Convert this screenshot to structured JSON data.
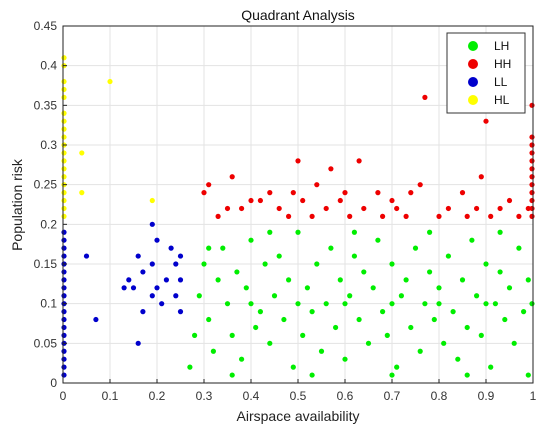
{
  "chart_data": {
    "type": "scatter",
    "title": "Quadrant Analysis",
    "xlabel": "Airspace availability",
    "ylabel": "Population risk",
    "xlim": [
      0,
      1
    ],
    "ylim": [
      0,
      0.45
    ],
    "xticks": [
      0,
      0.1,
      0.2,
      0.3,
      0.4,
      0.5,
      0.6,
      0.7,
      0.8,
      0.9,
      1
    ],
    "yticks": [
      0,
      0.05,
      0.1,
      0.15,
      0.2,
      0.25,
      0.3,
      0.35,
      0.4,
      0.45
    ],
    "xtick_labels": [
      "0",
      "0.1",
      "0.2",
      "0.3",
      "0.4",
      "0.5",
      "0.6",
      "0.7",
      "0.8",
      "0.9",
      "1"
    ],
    "ytick_labels": [
      "0",
      "0.05",
      "0.1",
      "0.15",
      "0.2",
      "0.25",
      "0.3",
      "0.35",
      "0.4",
      "0.45"
    ],
    "grid": true,
    "legend_position": "top-right",
    "series": [
      {
        "name": "LH",
        "color": "#00ee00",
        "points": [
          [
            0.27,
            0.02
          ],
          [
            0.28,
            0.06
          ],
          [
            0.29,
            0.11
          ],
          [
            0.3,
            0.15
          ],
          [
            0.31,
            0.08
          ],
          [
            0.32,
            0.04
          ],
          [
            0.33,
            0.13
          ],
          [
            0.34,
            0.17
          ],
          [
            0.35,
            0.1
          ],
          [
            0.36,
            0.06
          ],
          [
            0.37,
            0.14
          ],
          [
            0.38,
            0.03
          ],
          [
            0.39,
            0.12
          ],
          [
            0.4,
            0.18
          ],
          [
            0.41,
            0.07
          ],
          [
            0.42,
            0.09
          ],
          [
            0.43,
            0.15
          ],
          [
            0.44,
            0.05
          ],
          [
            0.45,
            0.11
          ],
          [
            0.46,
            0.16
          ],
          [
            0.47,
            0.08
          ],
          [
            0.48,
            0.13
          ],
          [
            0.49,
            0.02
          ],
          [
            0.5,
            0.19
          ],
          [
            0.51,
            0.06
          ],
          [
            0.52,
            0.12
          ],
          [
            0.53,
            0.09
          ],
          [
            0.54,
            0.15
          ],
          [
            0.55,
            0.04
          ],
          [
            0.56,
            0.1
          ],
          [
            0.57,
            0.17
          ],
          [
            0.58,
            0.07
          ],
          [
            0.59,
            0.13
          ],
          [
            0.6,
            0.03
          ],
          [
            0.61,
            0.11
          ],
          [
            0.62,
            0.16
          ],
          [
            0.63,
            0.08
          ],
          [
            0.64,
            0.14
          ],
          [
            0.65,
            0.05
          ],
          [
            0.66,
            0.12
          ],
          [
            0.67,
            0.18
          ],
          [
            0.68,
            0.09
          ],
          [
            0.69,
            0.06
          ],
          [
            0.7,
            0.15
          ],
          [
            0.71,
            0.02
          ],
          [
            0.72,
            0.11
          ],
          [
            0.73,
            0.13
          ],
          [
            0.74,
            0.07
          ],
          [
            0.75,
            0.17
          ],
          [
            0.76,
            0.04
          ],
          [
            0.77,
            0.1
          ],
          [
            0.78,
            0.14
          ],
          [
            0.79,
            0.08
          ],
          [
            0.8,
            0.12
          ],
          [
            0.81,
            0.05
          ],
          [
            0.82,
            0.16
          ],
          [
            0.83,
            0.09
          ],
          [
            0.84,
            0.03
          ],
          [
            0.85,
            0.13
          ],
          [
            0.86,
            0.07
          ],
          [
            0.87,
            0.18
          ],
          [
            0.88,
            0.11
          ],
          [
            0.89,
            0.06
          ],
          [
            0.9,
            0.15
          ],
          [
            0.91,
            0.02
          ],
          [
            0.92,
            0.1
          ],
          [
            0.93,
            0.14
          ],
          [
            0.94,
            0.08
          ],
          [
            0.95,
            0.12
          ],
          [
            0.96,
            0.05
          ],
          [
            0.97,
            0.17
          ],
          [
            0.98,
            0.09
          ],
          [
            0.99,
            0.13
          ],
          [
            1.0,
            0.1
          ],
          [
            0.31,
            0.17
          ],
          [
            0.36,
            0.01
          ],
          [
            0.44,
            0.19
          ],
          [
            0.53,
            0.01
          ],
          [
            0.62,
            0.19
          ],
          [
            0.7,
            0.01
          ],
          [
            0.78,
            0.19
          ],
          [
            0.86,
            0.01
          ],
          [
            0.93,
            0.19
          ],
          [
            0.99,
            0.01
          ],
          [
            0.4,
            0.1
          ],
          [
            0.5,
            0.1
          ],
          [
            0.6,
            0.1
          ],
          [
            0.7,
            0.1
          ],
          [
            0.8,
            0.1
          ],
          [
            0.9,
            0.1
          ]
        ]
      },
      {
        "name": "HH",
        "color": "#ee0000",
        "points": [
          [
            0.3,
            0.24
          ],
          [
            0.31,
            0.25
          ],
          [
            0.33,
            0.21
          ],
          [
            0.35,
            0.22
          ],
          [
            0.36,
            0.26
          ],
          [
            0.38,
            0.22
          ],
          [
            0.4,
            0.23
          ],
          [
            0.42,
            0.23
          ],
          [
            0.44,
            0.24
          ],
          [
            0.46,
            0.22
          ],
          [
            0.48,
            0.21
          ],
          [
            0.49,
            0.24
          ],
          [
            0.5,
            0.28
          ],
          [
            0.51,
            0.23
          ],
          [
            0.53,
            0.21
          ],
          [
            0.54,
            0.25
          ],
          [
            0.56,
            0.22
          ],
          [
            0.57,
            0.27
          ],
          [
            0.59,
            0.23
          ],
          [
            0.6,
            0.24
          ],
          [
            0.61,
            0.21
          ],
          [
            0.63,
            0.28
          ],
          [
            0.64,
            0.22
          ],
          [
            0.67,
            0.24
          ],
          [
            0.68,
            0.21
          ],
          [
            0.7,
            0.23
          ],
          [
            0.71,
            0.22
          ],
          [
            0.73,
            0.21
          ],
          [
            0.74,
            0.24
          ],
          [
            0.76,
            0.25
          ],
          [
            0.77,
            0.36
          ],
          [
            0.8,
            0.21
          ],
          [
            0.82,
            0.22
          ],
          [
            0.85,
            0.24
          ],
          [
            0.86,
            0.21
          ],
          [
            0.88,
            0.22
          ],
          [
            0.89,
            0.26
          ],
          [
            0.9,
            0.33
          ],
          [
            0.91,
            0.21
          ],
          [
            0.93,
            0.22
          ],
          [
            0.95,
            0.23
          ],
          [
            0.97,
            0.21
          ],
          [
            0.99,
            0.22
          ],
          [
            1.0,
            0.35
          ],
          [
            1.0,
            0.3
          ],
          [
            1.0,
            0.27
          ],
          [
            1.0,
            0.25
          ],
          [
            1.0,
            0.24
          ],
          [
            1.0,
            0.23
          ],
          [
            1.0,
            0.22
          ],
          [
            1.0,
            0.21
          ],
          [
            1.0,
            0.29
          ],
          [
            1.0,
            0.31
          ],
          [
            1.0,
            0.26
          ],
          [
            1.0,
            0.28
          ]
        ]
      },
      {
        "name": "LL",
        "color": "#0000cc",
        "points": [
          [
            0.05,
            0.16
          ],
          [
            0.07,
            0.08
          ],
          [
            0.13,
            0.12
          ],
          [
            0.14,
            0.13
          ],
          [
            0.15,
            0.12
          ],
          [
            0.16,
            0.05
          ],
          [
            0.16,
            0.16
          ],
          [
            0.17,
            0.14
          ],
          [
            0.17,
            0.09
          ],
          [
            0.19,
            0.2
          ],
          [
            0.19,
            0.15
          ],
          [
            0.19,
            0.11
          ],
          [
            0.2,
            0.12
          ],
          [
            0.2,
            0.18
          ],
          [
            0.21,
            0.1
          ],
          [
            0.22,
            0.13
          ],
          [
            0.23,
            0.17
          ],
          [
            0.24,
            0.15
          ],
          [
            0.24,
            0.11
          ],
          [
            0.25,
            0.09
          ],
          [
            0.25,
            0.16
          ],
          [
            0.25,
            0.13
          ],
          [
            0.0,
            0.01
          ],
          [
            0.0,
            0.03
          ],
          [
            0.0,
            0.05
          ],
          [
            0.0,
            0.07
          ],
          [
            0.0,
            0.09
          ],
          [
            0.0,
            0.11
          ],
          [
            0.0,
            0.13
          ],
          [
            0.0,
            0.15
          ],
          [
            0.0,
            0.17
          ],
          [
            0.0,
            0.19
          ],
          [
            0.0,
            0.02
          ],
          [
            0.0,
            0.04
          ],
          [
            0.0,
            0.06
          ],
          [
            0.0,
            0.08
          ],
          [
            0.0,
            0.1
          ],
          [
            0.0,
            0.12
          ],
          [
            0.0,
            0.14
          ],
          [
            0.0,
            0.16
          ],
          [
            0.0,
            0.18
          ]
        ]
      },
      {
        "name": "HL",
        "color": "#ffff00",
        "points": [
          [
            0.04,
            0.29
          ],
          [
            0.04,
            0.24
          ],
          [
            0.1,
            0.38
          ],
          [
            0.19,
            0.23
          ],
          [
            0.0,
            0.21
          ],
          [
            0.0,
            0.22
          ],
          [
            0.0,
            0.24
          ],
          [
            0.0,
            0.26
          ],
          [
            0.0,
            0.28
          ],
          [
            0.0,
            0.3
          ],
          [
            0.0,
            0.32
          ],
          [
            0.0,
            0.34
          ],
          [
            0.0,
            0.36
          ],
          [
            0.0,
            0.37
          ],
          [
            0.0,
            0.38
          ],
          [
            0.0,
            0.4
          ],
          [
            0.0,
            0.41
          ],
          [
            0.0,
            0.23
          ],
          [
            0.0,
            0.25
          ],
          [
            0.0,
            0.27
          ],
          [
            0.0,
            0.29
          ],
          [
            0.0,
            0.31
          ],
          [
            0.0,
            0.33
          ]
        ]
      }
    ]
  }
}
